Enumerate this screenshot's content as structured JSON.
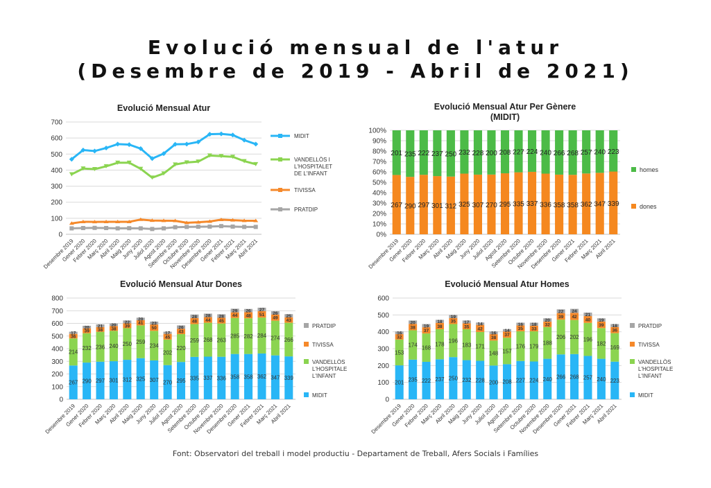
{
  "title_line1": "Evolució mensual de l'atur",
  "title_line2": "(Desembre de 2019 - Abril de 2021)",
  "source": "Font: Observatori del treball i model productiu - Departament de Treball, Afers Socials i Famílies",
  "colors": {
    "midit": "#29B6F6",
    "vandellos": "#8BD450",
    "tivissa": "#F5892A",
    "pratdip": "#A6A6A6",
    "homes": "#4CBB47",
    "dones": "#F5881F"
  },
  "chart_data": [
    {
      "id": "line",
      "type": "line",
      "title": "Evolució Mensual Atur",
      "categories": [
        "Desembre 2019",
        "Gener 2020",
        "Febrer 2020",
        "Març 2020",
        "Abril 2020",
        "Maig 2020",
        "Juny 2020",
        "Juliol 2020",
        "Agost 2020",
        "Setembre 2020",
        "Octubre 2020",
        "Novembre 2020",
        "Desembre 2020",
        "Gener 2021",
        "Febrer 2021",
        "Març 2021",
        "Abril 2021"
      ],
      "ylim": [
        0,
        700
      ],
      "yticks": [
        0,
        100,
        200,
        300,
        400,
        500,
        600,
        700
      ],
      "series": [
        {
          "name": "MIDIT",
          "values": [
            468,
            525,
            519,
            538,
            562,
            559,
            534,
            472,
            503,
            561,
            562,
            576,
            624,
            626,
            619,
            587,
            562
          ]
        },
        {
          "name": "VANDELLÒS I L'HOSPITALET DE L'INFANT",
          "values": [
            374,
            410,
            406,
            424,
            446,
            446,
            408,
            353,
            379,
            435,
            448,
            453,
            491,
            487,
            483,
            456,
            437
          ]
        },
        {
          "name": "TIVISSA",
          "values": [
            68,
            78,
            77,
            78,
            78,
            78,
            92,
            86,
            85,
            84,
            72,
            75,
            80,
            91,
            88,
            85,
            84
          ]
        },
        {
          "name": "PRATDIP",
          "values": [
            37,
            39,
            40,
            39,
            37,
            38,
            37,
            33,
            37,
            44,
            46,
            47,
            48,
            51,
            48,
            46,
            46
          ]
        }
      ]
    },
    {
      "id": "gender",
      "type": "bar",
      "stacked": "percent",
      "title": "Evolució Mensual Atur Per Gènere (MIDIT)",
      "title_lines": [
        "Evolució Mensual Atur Per Gènere",
        "(MIDIT)"
      ],
      "categories": [
        "Desembre 2019",
        "Gener 2020",
        "Febrer 2020",
        "Març 2020",
        "Abril 2020",
        "Maig 2020",
        "Juny 2020",
        "Juliol 2020",
        "Agost 2020",
        "Setembre 2020",
        "Octubre 2020",
        "Novembre 2020",
        "Desembre 2020",
        "Gener 2021",
        "Febrer 2021",
        "Març 2021",
        "Abril 2021"
      ],
      "yticks": [
        "0%",
        "10%",
        "20%",
        "30%",
        "40%",
        "50%",
        "60%",
        "70%",
        "80%",
        "90%",
        "100%"
      ],
      "series": [
        {
          "name": "dones",
          "values": [
            267,
            290,
            297,
            301,
            312,
            325,
            307,
            270,
            295,
            335,
            337,
            336,
            358,
            358,
            362,
            347,
            339
          ]
        },
        {
          "name": "homes",
          "values": [
            201,
            235,
            222,
            237,
            250,
            232,
            228,
            200,
            208,
            227,
            224,
            240,
            266,
            268,
            257,
            240,
            223
          ]
        }
      ]
    },
    {
      "id": "dones",
      "type": "bar",
      "stacked": true,
      "title": "Evolució Mensual Atur Dones",
      "categories": [
        "Desembre 2019",
        "Gener 2020",
        "Febrer 2020",
        "Març 2020",
        "Abril 2020",
        "Maig 2020",
        "Juny 2020",
        "Juliol 2020",
        "Agost 2020",
        "Setembre 2020",
        "Octubre 2020",
        "Novembre 2020",
        "Desembre 2020",
        "Gener 2021",
        "Febrer 2021",
        "Març 2021",
        "Abril 2021"
      ],
      "ylim": [
        0,
        800
      ],
      "yticks": [
        0,
        100,
        200,
        300,
        400,
        500,
        600,
        700,
        800
      ],
      "series": [
        {
          "name": "MIDIT",
          "values": [
            267,
            290,
            297,
            301,
            312,
            325,
            307,
            270,
            295,
            335,
            337,
            336,
            358,
            358,
            362,
            347,
            339
          ]
        },
        {
          "name": "VANDELLÒS I L'HOSPITALET DE L'INFANT",
          "values": [
            214,
            232,
            236,
            240,
            250,
            259,
            234,
            202,
            220,
            259,
            268,
            263,
            285,
            282,
            284,
            274,
            266
          ]
        },
        {
          "name": "TIVISSA",
          "values": [
            36,
            39,
            38,
            38,
            39,
            41,
            50,
            45,
            43,
            48,
            44,
            45,
            44,
            48,
            51,
            49,
            43
          ]
        },
        {
          "name": "PRATDIP",
          "values": [
            17,
            20,
            21,
            20,
            22,
            20,
            23,
            17,
            26,
            28,
            28,
            28,
            29,
            26,
            27,
            26,
            25
          ]
        }
      ]
    },
    {
      "id": "homes",
      "type": "bar",
      "stacked": true,
      "title": "Evolució Mensual Atur Homes",
      "categories": [
        "Desembre 2019",
        "Gener 2020",
        "Febrer 2020",
        "Març 2020",
        "Abril 2020",
        "Maig 2020",
        "Juny 2020",
        "Juliol 2020",
        "Agost 2020",
        "Setembre 2020",
        "Octubre 2020",
        "Novembre 2020",
        "Desembre 2020",
        "Gener 2021",
        "Febrer 2021",
        "Març 2021",
        "Abril 2021"
      ],
      "ylim": [
        0,
        600
      ],
      "yticks": [
        0,
        100,
        200,
        300,
        400,
        500,
        600
      ],
      "series": [
        {
          "name": "MIDIT",
          "values": [
            201,
            235,
            222,
            237,
            250,
            232,
            228,
            200,
            208,
            227,
            224,
            240,
            266,
            268,
            257,
            240,
            223
          ]
        },
        {
          "name": "VANDELLÒS I L'HOSPITALET DE L'INFANT",
          "values": [
            153,
            174,
            168,
            178,
            196,
            183,
            171,
            148,
            157,
            176,
            179,
            188,
            206,
            202,
            196,
            182,
            169
          ]
        },
        {
          "name": "TIVISSA",
          "values": [
            32,
            38,
            37,
            38,
            35,
            35,
            42,
            38,
            37,
            35,
            33,
            32,
            39,
            42,
            40,
            39,
            36
          ]
        },
        {
          "name": "PRATDIP",
          "values": [
            16,
            20,
            19,
            18,
            19,
            17,
            14,
            16,
            14,
            16,
            18,
            20,
            22,
            24,
            21,
            19,
            18
          ]
        }
      ]
    }
  ],
  "legend": {
    "line": [
      "MIDIT",
      "VANDELLÒS I L'HOSPITALET DE L'INFANT",
      "TIVISSA",
      "PRATDIP"
    ],
    "gender": [
      "homes",
      "dones"
    ],
    "stack": [
      "PRATDIP",
      "TIVISSA",
      "VANDELLÒS I L'HOSPITALET DE L'INFANT",
      "MIDIT"
    ]
  }
}
